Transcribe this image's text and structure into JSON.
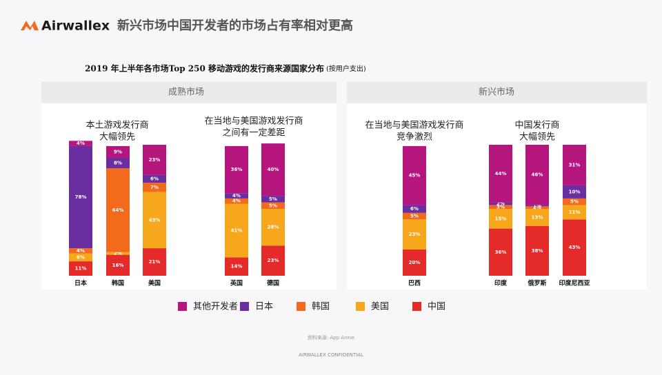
{
  "header": {
    "logo": "Airwallex",
    "title": "新兴市场中国开发者的市场占有率相对更高"
  },
  "chart_data": {
    "type": "stacked-bar",
    "title": "2019 年上半年各市场Top 250 移动游戏的发行商来源国家分布",
    "subtitle": "(按用户支出)",
    "panels": [
      {
        "label": "成熟市场"
      },
      {
        "label": "新兴市场"
      }
    ],
    "annotations": [
      [
        "本土游戏发行商",
        "大幅领先"
      ],
      [
        "在当地与美国游戏发行商",
        "之间有一定差距"
      ],
      [
        "在当地与美国游戏发行商",
        "竞争激烈"
      ],
      [
        "中国发行商",
        "大幅领先"
      ]
    ],
    "categories": [
      "日本",
      "韩国",
      "美国",
      "英国",
      "德国",
      "巴西",
      "印度",
      "俄罗斯",
      "印度尼西亚"
    ],
    "ylim": [
      0,
      100
    ],
    "series": [
      {
        "name": "其他开发者",
        "color": "#b5167e",
        "values": [
          4,
          9,
          23,
          36,
          40,
          45,
          44,
          46,
          31
        ],
        "value_labels": [
          "4%",
          "9%",
          "23%",
          "36%",
          "40%",
          "45%",
          "44%",
          "46%",
          "31%"
        ]
      },
      {
        "name": "日本",
        "color": "#6a2ea0",
        "values": [
          78,
          8,
          6,
          4,
          5,
          6,
          2,
          1,
          10
        ],
        "value_labels": [
          "78%",
          "8%",
          "6%",
          "4%",
          "5%",
          "6%",
          "2%",
          "1%",
          "10%"
        ]
      },
      {
        "name": "韩国",
        "color": "#f26a1b",
        "values": [
          4,
          64,
          7,
          4,
          5,
          5,
          3,
          2,
          5
        ],
        "value_labels": [
          "4%",
          "64%",
          "7%",
          "4%",
          "5%",
          "5%",
          "3%",
          "2%",
          "5%"
        ]
      },
      {
        "name": "美国",
        "color": "#f6a71c",
        "values": [
          6,
          2,
          43,
          41,
          28,
          23,
          15,
          13,
          11
        ],
        "value_labels": [
          "6%",
          "2%",
          "43%",
          "41%",
          "28%",
          "23%",
          "15%",
          "13%",
          "11%"
        ]
      },
      {
        "name": "中国",
        "color": "#e52a2a",
        "values": [
          11,
          16,
          21,
          14,
          23,
          20,
          36,
          38,
          43
        ],
        "value_labels": [
          "11%",
          "16%",
          "21%",
          "14%",
          "23%",
          "20%",
          "36%",
          "38%",
          "43%"
        ]
      }
    ],
    "source": "资料来源: App Annie"
  },
  "footer": "AIRWALLEX CONFIDENTIAL"
}
